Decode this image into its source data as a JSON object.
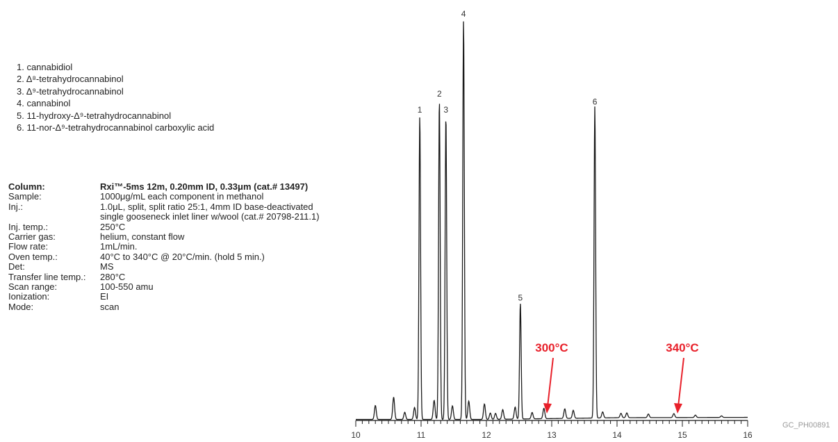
{
  "compounds": [
    "1. cannabidiol",
    "2. Δ⁸-tetrahydrocannabinol",
    "3. Δ⁹-tetrahydrocannabinol",
    "4. cannabinol",
    "5. 11-hydroxy-Δ⁹-tetrahydrocannabinol",
    "6. 11-nor-Δ⁹-tetrahydrocannabinol carboxylic acid"
  ],
  "conditions": [
    {
      "key": "Column:",
      "value": "Rxi™-5ms 12m, 0.20mm ID, 0.33μm (cat.# 13497)"
    },
    {
      "key": "Sample:",
      "value": "1000μg/mL each component in methanol"
    },
    {
      "key": "Inj.:",
      "value": "1.0μL, split, split ratio 25:1, 4mm ID base-deactivated"
    },
    {
      "key": "",
      "value": "single gooseneck inlet liner w/wool (cat.# 20798-211.1)"
    },
    {
      "key": "Inj. temp.:",
      "value": "250°C"
    },
    {
      "key": "Carrier gas:",
      "value": "helium, constant flow"
    },
    {
      "key": "Flow rate:",
      "value": "1mL/min."
    },
    {
      "key": "Oven temp.:",
      "value": "40°C to 340°C @ 20°C/min. (hold 5 min.)"
    },
    {
      "key": "Det:",
      "value": "MS"
    },
    {
      "key": "Transfer line temp.:",
      "value": "280°C"
    },
    {
      "key": "Scan range:",
      "value": "100-550 amu"
    },
    {
      "key": "Ionization:",
      "value": "EI"
    },
    {
      "key": "Mode:",
      "value": "scan"
    }
  ],
  "reference": "GC_PH00891",
  "colors": {
    "trace": "#1a1a1a",
    "annotation": "#e8202a"
  },
  "chart_data": {
    "type": "line",
    "title": "",
    "xlabel": "",
    "ylabel": "",
    "xlim": [
      10,
      16
    ],
    "ylim": [
      0,
      100
    ],
    "x_ticks": [
      "10",
      "11",
      "12",
      "13",
      "14",
      "15",
      "16"
    ],
    "grid": false,
    "peaks": [
      {
        "label": "1",
        "x": 10.98,
        "y": 76
      },
      {
        "label": "2",
        "x": 11.28,
        "y": 80
      },
      {
        "label": "3",
        "x": 11.38,
        "y": 76
      },
      {
        "label": "4",
        "x": 11.65,
        "y": 100
      },
      {
        "label": "5",
        "x": 12.52,
        "y": 29
      },
      {
        "label": "6",
        "x": 13.66,
        "y": 78
      }
    ],
    "minor_peaks": [
      {
        "x": 10.3,
        "y": 3.5
      },
      {
        "x": 10.58,
        "y": 5.6
      },
      {
        "x": 10.75,
        "y": 1.8
      },
      {
        "x": 10.9,
        "y": 3.0
      },
      {
        "x": 11.2,
        "y": 4.8
      },
      {
        "x": 11.48,
        "y": 3.4
      },
      {
        "x": 11.73,
        "y": 4.6
      },
      {
        "x": 11.97,
        "y": 3.9
      },
      {
        "x": 12.06,
        "y": 1.6
      },
      {
        "x": 12.14,
        "y": 1.5
      },
      {
        "x": 12.25,
        "y": 2.4
      },
      {
        "x": 12.44,
        "y": 3.0
      },
      {
        "x": 12.7,
        "y": 1.6
      },
      {
        "x": 12.88,
        "y": 2.6
      },
      {
        "x": 13.2,
        "y": 2.4
      },
      {
        "x": 13.33,
        "y": 2.0
      },
      {
        "x": 13.78,
        "y": 1.5
      },
      {
        "x": 14.06,
        "y": 1.1
      },
      {
        "x": 14.15,
        "y": 1.2
      },
      {
        "x": 14.48,
        "y": 0.9
      },
      {
        "x": 14.87,
        "y": 1.0
      },
      {
        "x": 15.2,
        "y": 0.6
      },
      {
        "x": 15.6,
        "y": 0.4
      }
    ],
    "annotations": [
      {
        "text": "300°C",
        "x": 13.0
      },
      {
        "text": "340°C",
        "x": 15.0
      }
    ]
  }
}
